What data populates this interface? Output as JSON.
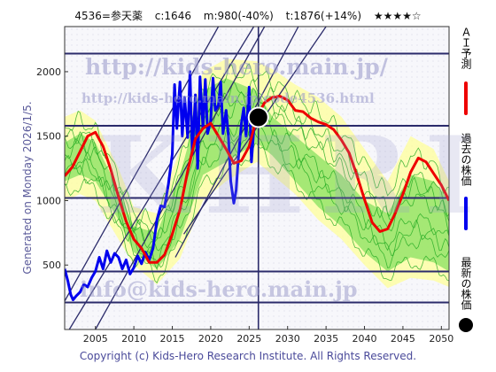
{
  "header": {
    "code_name": "4536=参天薬",
    "current": "c:1646",
    "median": "m:980(-40%)",
    "target": "t:1876(+14%)",
    "stars": "★★★★☆"
  },
  "watermarks": {
    "url": "http://kids-hero.main.jp/",
    "page": "http://kids-hero.main.jp/code4536.html",
    "mail": "info@kids-hero.main.jp",
    "big": "KHRI"
  },
  "generated": "Generated on Monday 2026/1/5.",
  "copyright": "Copyright (c) Kids-Hero Research Institute. All Rights Reserved.",
  "legend": {
    "ai_forecast": "ＡＩ予測",
    "past_price": "過去の株価",
    "latest_price": "最新の株価"
  },
  "colors": {
    "ai_forecast": "#ee0000",
    "past_price": "#0000ee",
    "latest_dot": "#000000",
    "band_outer": "#ffff99",
    "band_inner": "#77dd55",
    "similar_paths": "#22aa22",
    "grid": "#2b2b6b",
    "frame": "#333333"
  },
  "chart_data": {
    "type": "line",
    "xlim": [
      2001,
      2051
    ],
    "ylim": [
      0,
      2350
    ],
    "x_ticks": [
      2005,
      2010,
      2015,
      2020,
      2025,
      2030,
      2035,
      2040,
      2045,
      2050
    ],
    "y_ticks": [
      500,
      1000,
      1500,
      2000
    ],
    "horizontal_levels": [
      210,
      450,
      1020,
      1580,
      2140
    ],
    "current_year": 2026.2,
    "diagonal_trendlines": [
      {
        "x0": 2001,
        "y0": 220,
        "x1": 2021,
        "y1": 2350
      },
      {
        "x0": 2001.6,
        "y0": 0,
        "x1": 2025.6,
        "y1": 2350
      },
      {
        "x0": 2005,
        "y0": 0,
        "x1": 2027,
        "y1": 2350
      },
      {
        "x0": 2015.4,
        "y0": 560,
        "x1": 2031.4,
        "y1": 2350
      },
      {
        "x0": 2016.5,
        "y0": 740,
        "x1": 2035,
        "y1": 2350
      }
    ],
    "series": [
      {
        "name": "過去の株価",
        "color": "#0000ee",
        "x": [
          2001.0,
          2001.4,
          2001.8,
          2002.1,
          2002.5,
          2003.0,
          2003.5,
          2004.0,
          2004.5,
          2005.0,
          2005.5,
          2006.0,
          2006.5,
          2007.0,
          2007.5,
          2008.0,
          2008.5,
          2009.0,
          2009.5,
          2010.0,
          2010.5,
          2011.0,
          2011.5,
          2012.0,
          2012.5,
          2013.0,
          2013.5,
          2014.0,
          2014.5,
          2015.0,
          2015.3,
          2015.6,
          2016.0,
          2016.3,
          2016.6,
          2017.0,
          2017.3,
          2017.6,
          2018.0,
          2018.3,
          2018.6,
          2019.0,
          2019.3,
          2019.6,
          2020.0,
          2020.3,
          2020.6,
          2021.0,
          2021.3,
          2021.6,
          2022.0,
          2022.3,
          2022.6,
          2023.0,
          2023.3,
          2023.6,
          2024.0,
          2024.3,
          2024.6,
          2025.0,
          2025.3,
          2025.6,
          2026.0
        ],
        "y": [
          470,
          380,
          270,
          230,
          260,
          290,
          350,
          330,
          400,
          450,
          560,
          470,
          610,
          520,
          590,
          560,
          470,
          540,
          430,
          480,
          570,
          510,
          600,
          540,
          630,
          850,
          960,
          950,
          1130,
          1360,
          1900,
          1560,
          1920,
          1500,
          1800,
          1490,
          2000,
          1360,
          1820,
          1250,
          1960,
          1560,
          1940,
          1520,
          1620,
          1950,
          1700,
          1740,
          1920,
          1520,
          1700,
          1500,
          1150,
          980,
          1080,
          1340,
          1600,
          1720,
          1500,
          1880,
          1300,
          1550,
          1646
        ]
      },
      {
        "name": "ＡＩ予測",
        "color": "#ee0000",
        "x": [
          2001,
          2002,
          2003,
          2004,
          2005,
          2006,
          2007,
          2008,
          2009,
          2010,
          2011,
          2012,
          2013,
          2014,
          2015,
          2016,
          2017,
          2018,
          2019,
          2020,
          2021,
          2022,
          2023,
          2024,
          2025,
          2026,
          2027,
          2028,
          2029,
          2030,
          2031,
          2032,
          2033,
          2034,
          2035,
          2036,
          2037,
          2038,
          2039,
          2040,
          2041,
          2042,
          2043,
          2044,
          2045,
          2046,
          2047,
          2048,
          2049,
          2050,
          2051
        ],
        "y": [
          1190,
          1260,
          1380,
          1500,
          1530,
          1420,
          1240,
          1030,
          840,
          700,
          630,
          520,
          520,
          580,
          740,
          930,
          1230,
          1480,
          1560,
          1600,
          1500,
          1400,
          1290,
          1310,
          1420,
          1650,
          1760,
          1800,
          1810,
          1780,
          1700,
          1690,
          1640,
          1610,
          1590,
          1550,
          1470,
          1370,
          1200,
          1010,
          830,
          760,
          780,
          900,
          1050,
          1220,
          1330,
          1300,
          1210,
          1120,
          1000
        ]
      }
    ],
    "band_outer_upper": [
      [
        2001,
        1650
      ],
      [
        2003,
        1700
      ],
      [
        2005,
        1620
      ],
      [
        2008,
        1250
      ],
      [
        2010,
        950
      ],
      [
        2013,
        900
      ],
      [
        2016,
        1400
      ],
      [
        2019,
        2000
      ],
      [
        2022,
        2100
      ],
      [
        2026,
        2080
      ],
      [
        2028,
        2020
      ],
      [
        2031,
        1900
      ],
      [
        2034,
        1800
      ],
      [
        2037,
        1650
      ],
      [
        2040,
        1400
      ],
      [
        2043,
        1150
      ],
      [
        2046,
        1500
      ],
      [
        2049,
        1400
      ],
      [
        2051,
        1150
      ]
    ],
    "band_outer_lower": [
      [
        2001,
        1000
      ],
      [
        2003,
        1050
      ],
      [
        2005,
        1000
      ],
      [
        2008,
        700
      ],
      [
        2010,
        500
      ],
      [
        2013,
        350
      ],
      [
        2016,
        550
      ],
      [
        2019,
        1000
      ],
      [
        2022,
        1150
      ],
      [
        2026,
        1300
      ],
      [
        2028,
        1200
      ],
      [
        2031,
        1050
      ],
      [
        2034,
        850
      ],
      [
        2037,
        700
      ],
      [
        2040,
        500
      ],
      [
        2043,
        320
      ],
      [
        2046,
        400
      ],
      [
        2049,
        380
      ],
      [
        2051,
        330
      ]
    ],
    "band_inner_upper": [
      [
        2001,
        1450
      ],
      [
        2003,
        1520
      ],
      [
        2005,
        1450
      ],
      [
        2008,
        1080
      ],
      [
        2010,
        800
      ],
      [
        2013,
        750
      ],
      [
        2016,
        1200
      ],
      [
        2019,
        1850
      ],
      [
        2022,
        1950
      ],
      [
        2026,
        1850
      ],
      [
        2028,
        1650
      ],
      [
        2031,
        1500
      ],
      [
        2034,
        1350
      ],
      [
        2037,
        1200
      ],
      [
        2040,
        1000
      ],
      [
        2043,
        900
      ],
      [
        2046,
        1200
      ],
      [
        2049,
        1150
      ],
      [
        2051,
        1000
      ]
    ],
    "band_inner_lower": [
      [
        2001,
        1150
      ],
      [
        2003,
        1200
      ],
      [
        2005,
        1150
      ],
      [
        2008,
        850
      ],
      [
        2010,
        600
      ],
      [
        2013,
        470
      ],
      [
        2016,
        700
      ],
      [
        2019,
        1200
      ],
      [
        2022,
        1300
      ],
      [
        2026,
        1450
      ],
      [
        2028,
        1350
      ],
      [
        2031,
        1150
      ],
      [
        2034,
        950
      ],
      [
        2037,
        800
      ],
      [
        2040,
        600
      ],
      [
        2043,
        450
      ],
      [
        2046,
        560
      ],
      [
        2049,
        520
      ],
      [
        2051,
        450
      ]
    ],
    "latest": {
      "x": 2026.2,
      "y": 1646
    }
  }
}
